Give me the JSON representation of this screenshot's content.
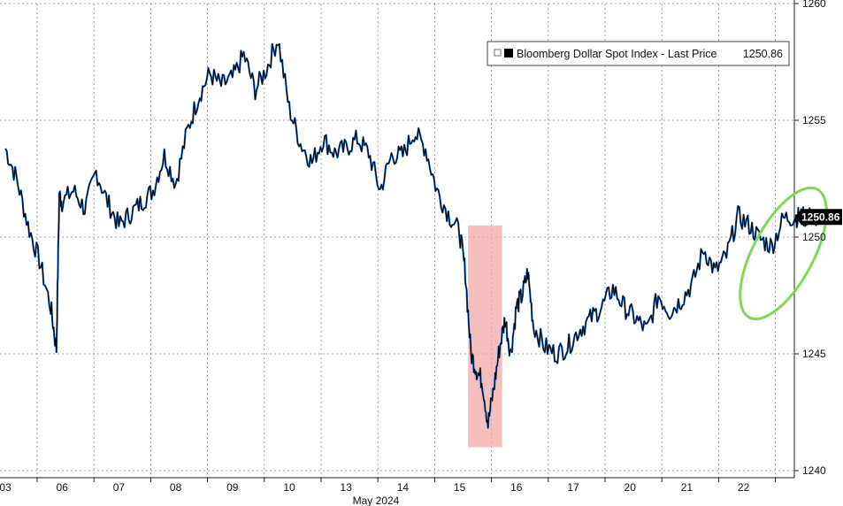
{
  "chart_data": {
    "type": "line",
    "title": "",
    "xlabel": "May 2024",
    "ylabel": "",
    "ylim": [
      1240,
      1260
    ],
    "y_ticks": [
      1240,
      1245,
      1250,
      1255,
      1260
    ],
    "x_ticks": [
      "03",
      "06",
      "07",
      "08",
      "09",
      "10",
      "13",
      "14",
      "15",
      "16",
      "17",
      "20",
      "21",
      "22"
    ],
    "grid": true,
    "legend_position": "top-right",
    "series": [
      {
        "name": "Bloomberg Dollar Spot Index - Last Price",
        "last_value": "1250.86",
        "color": "#000000",
        "accent_color": "#1f6fd1",
        "x": [
          0,
          0.2,
          0.4,
          0.6,
          0.8,
          0.9,
          0.95,
          1,
          1.2,
          1.4,
          1.6,
          1.8,
          2.0,
          2.2,
          2.4,
          2.6,
          2.8,
          3.0,
          3.2,
          3.4,
          3.6,
          3.8,
          4.0,
          4.2,
          4.4,
          4.6,
          4.8,
          5.0,
          5.2,
          5.4,
          5.6,
          5.8,
          6.0,
          6.2,
          6.4,
          6.6,
          6.8,
          7.0,
          7.2,
          7.4,
          7.6,
          7.8,
          8.0,
          8.1,
          8.2,
          8.3,
          8.4,
          8.5,
          8.6,
          8.7,
          8.8,
          8.9,
          9.0,
          9.1,
          9.2,
          9.3,
          9.5,
          9.7,
          9.9,
          10.1,
          10.3,
          10.5,
          10.7,
          10.9,
          11.1,
          11.3,
          11.5,
          11.7,
          11.9,
          12.1,
          12.3,
          12.5,
          12.7,
          12.9,
          13.1,
          13.3,
          13.5,
          13.7,
          13.9,
          14.0,
          14.1,
          14.2,
          14.3
        ],
        "values": [
          1253.8,
          1252.5,
          1250.5,
          1249.0,
          1247.0,
          1245.2,
          1251.8,
          1251.5,
          1252.0,
          1251.2,
          1252.8,
          1251.5,
          1250.5,
          1251.0,
          1251.5,
          1252.0,
          1253.5,
          1252.3,
          1254.5,
          1256.0,
          1257.0,
          1256.5,
          1256.8,
          1257.8,
          1256.3,
          1257.2,
          1258.5,
          1255.5,
          1254.0,
          1253.2,
          1254.2,
          1253.6,
          1253.8,
          1254.2,
          1253.6,
          1252.0,
          1253.5,
          1253.5,
          1254.5,
          1253.8,
          1252.0,
          1251.0,
          1250.2,
          1248.5,
          1245.0,
          1244.3,
          1243.8,
          1242.0,
          1243.5,
          1245.2,
          1246.5,
          1245.0,
          1247.0,
          1247.5,
          1248.5,
          1246.2,
          1245.3,
          1245.0,
          1245.3,
          1246.0,
          1246.5,
          1247.0,
          1247.8,
          1247.0,
          1246.5,
          1246.0,
          1247.5,
          1246.8,
          1247.3,
          1248.0,
          1249.5,
          1248.5,
          1249.2,
          1250.9,
          1250.5,
          1249.9,
          1249.6,
          1250.8,
          1250.86,
          1250.86,
          1250.86,
          1250.86,
          1250.86
        ]
      }
    ],
    "annotations": [
      {
        "kind": "highlight-band",
        "x_start": 8.15,
        "x_end": 8.75,
        "y_start": 1241,
        "y_end": 1250.5,
        "color": "#f4a8a8"
      },
      {
        "kind": "ellipse",
        "x_center": 13.7,
        "y_center": 1249.3,
        "color": "#7fd857"
      }
    ]
  }
}
